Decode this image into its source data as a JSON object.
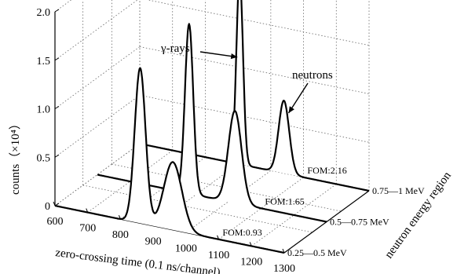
{
  "chart_data": {
    "type": "line",
    "subtype": "3d-waterfall",
    "title": "",
    "xlabel": "zero-crossing time (0.1 ns/channel)",
    "ylabel": "counts（×10⁴）",
    "zlabel": "neutron energy region",
    "xlim": [
      600,
      1300
    ],
    "ylim": [
      0,
      2.0
    ],
    "x_ticks": [
      "600",
      "700",
      "800",
      "900",
      "1000",
      "1100",
      "1200",
      "1300"
    ],
    "y_ticks": [
      "0",
      "0.5",
      "1.0",
      "1.5",
      "2.0"
    ],
    "grid": true,
    "annotations": {
      "gamma": "γ-rays",
      "neutron": "neutrons"
    },
    "series": [
      {
        "region": "0.25—0.5 MeV",
        "fom": "FOM:0.93",
        "gamma_peak": {
          "x": 860,
          "height": 1.6,
          "width": 33
        },
        "neutron_peak": {
          "x": 960,
          "height": 0.7,
          "width": 55
        }
      },
      {
        "region": "0.5—0.75 MeV",
        "fom": "FOM:1.65",
        "gamma_peak": {
          "x": 880,
          "height": 1.75,
          "width": 25
        },
        "neutron_peak": {
          "x": 1020,
          "height": 0.95,
          "width": 40
        }
      },
      {
        "region": "0.75—1 MeV",
        "fom": "FOM:2.16",
        "gamma_peak": {
          "x": 905,
          "height": 1.95,
          "width": 20
        },
        "neutron_peak": {
          "x": 1040,
          "height": 0.75,
          "width": 32
        }
      }
    ],
    "colors": {
      "line": "#000000",
      "grid": "#666666"
    }
  }
}
